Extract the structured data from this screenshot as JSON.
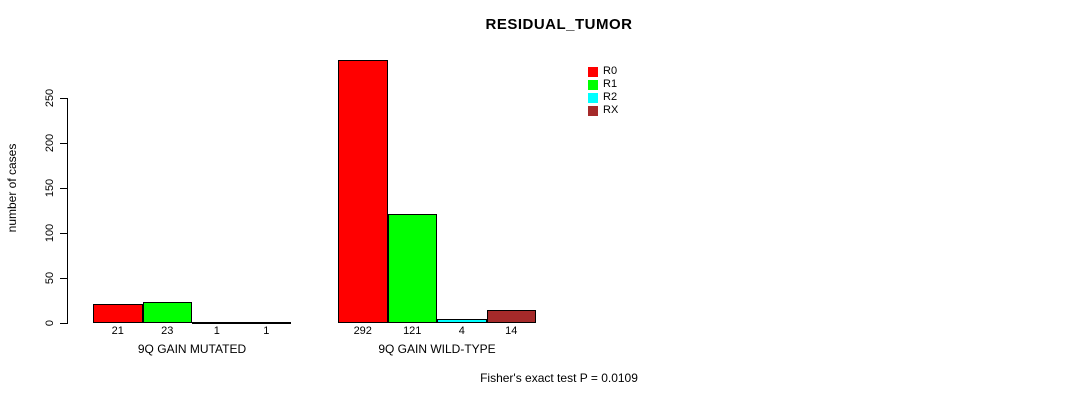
{
  "chart_data": {
    "type": "bar",
    "title": "RESIDUAL_TUMOR",
    "ylabel": "number of cases",
    "xlabel": "",
    "annotation": "Fisher's exact test P = 0.0109",
    "categories": [
      "9Q GAIN MUTATED",
      "9Q GAIN WILD-TYPE"
    ],
    "series": [
      {
        "name": "R0",
        "color": "#FF0000",
        "values": [
          21,
          292
        ]
      },
      {
        "name": "R1",
        "color": "#00FF00",
        "values": [
          23,
          121
        ]
      },
      {
        "name": "R2",
        "color": "#00FFFF",
        "values": [
          1,
          4
        ]
      },
      {
        "name": "RX",
        "color": "#A52A2A",
        "values": [
          1,
          14
        ]
      }
    ],
    "bar_value_labels": [
      [
        "21",
        "23",
        "1",
        "1"
      ],
      [
        "292",
        "121",
        "4",
        "14"
      ]
    ],
    "yticks": [
      0,
      50,
      100,
      150,
      200,
      250
    ],
    "ylim": [
      0,
      292
    ],
    "grid": false,
    "legend_position": "top-right",
    "bar_border_color": "#000000",
    "axis_color": "#000000",
    "background_color": "#FFFFFF"
  }
}
